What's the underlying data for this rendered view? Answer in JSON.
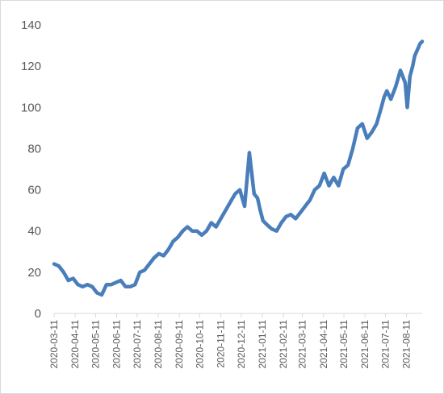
{
  "chart_data": {
    "type": "line",
    "title": "",
    "xlabel": "",
    "ylabel": "",
    "ylim": [
      0,
      140
    ],
    "y_ticks": [
      0,
      20,
      40,
      60,
      80,
      100,
      120,
      140
    ],
    "x_tick_labels": [
      "2020-03-11",
      "2020-04-11",
      "2020-05-11",
      "2020-06-11",
      "2020-07-11",
      "2020-08-11",
      "2020-09-11",
      "2020-10-11",
      "2020-11-11",
      "2020-12-11",
      "2021-01-11",
      "2021-02-11",
      "2021-03-11",
      "2021-04-11",
      "2021-05-11",
      "2021-06-11",
      "2021-07-11",
      "2021-08-11"
    ],
    "grid": false,
    "legend": "none",
    "series_color": "#4a7ebb",
    "series": [
      {
        "x": [
          "2020-03-11",
          "2020-03-18",
          "2020-03-25",
          "2020-04-01",
          "2020-04-08",
          "2020-04-15",
          "2020-04-22",
          "2020-04-29",
          "2020-05-06",
          "2020-05-13",
          "2020-05-20",
          "2020-05-27",
          "2020-06-03",
          "2020-06-10",
          "2020-06-17",
          "2020-06-24",
          "2020-07-01",
          "2020-07-08",
          "2020-07-15",
          "2020-07-22",
          "2020-07-29",
          "2020-08-05",
          "2020-08-12",
          "2020-08-19",
          "2020-08-26",
          "2020-09-02",
          "2020-09-09",
          "2020-09-16",
          "2020-09-23",
          "2020-09-30",
          "2020-10-07",
          "2020-10-14",
          "2020-10-21",
          "2020-10-28",
          "2020-11-04",
          "2020-11-11",
          "2020-11-18",
          "2020-11-25",
          "2020-12-02",
          "2020-12-09",
          "2020-12-16",
          "2020-12-23",
          "2020-12-30",
          "2021-01-04",
          "2021-01-08",
          "2021-01-12",
          "2021-01-18",
          "2021-01-25",
          "2021-02-01",
          "2021-02-08",
          "2021-02-15",
          "2021-02-22",
          "2021-03-01",
          "2021-03-08",
          "2021-03-15",
          "2021-03-22",
          "2021-03-29",
          "2021-04-05",
          "2021-04-12",
          "2021-04-19",
          "2021-04-26",
          "2021-05-03",
          "2021-05-10",
          "2021-05-17",
          "2021-05-24",
          "2021-05-31",
          "2021-06-07",
          "2021-06-14",
          "2021-06-21",
          "2021-06-28",
          "2021-07-05",
          "2021-07-09",
          "2021-07-13",
          "2021-07-19",
          "2021-07-26",
          "2021-08-02",
          "2021-08-09",
          "2021-08-12",
          "2021-08-16",
          "2021-08-20",
          "2021-08-23",
          "2021-08-27",
          "2021-08-31",
          "2021-09-03"
        ],
        "y": [
          24,
          23,
          20,
          16,
          17,
          14,
          13,
          14,
          13,
          10,
          9,
          14,
          14,
          15,
          16,
          13,
          13,
          14,
          20,
          21,
          24,
          27,
          29,
          28,
          31,
          35,
          37,
          40,
          42,
          40,
          40,
          38,
          40,
          44,
          42,
          46,
          50,
          54,
          58,
          60,
          52,
          78,
          58,
          56,
          50,
          45,
          43,
          41,
          40,
          44,
          47,
          48,
          46,
          49,
          52,
          55,
          60,
          62,
          68,
          62,
          66,
          62,
          70,
          72,
          80,
          90,
          92,
          85,
          88,
          92,
          100,
          105,
          108,
          104,
          110,
          118,
          112,
          100,
          115,
          120,
          125,
          128,
          131,
          132
        ]
      }
    ]
  }
}
